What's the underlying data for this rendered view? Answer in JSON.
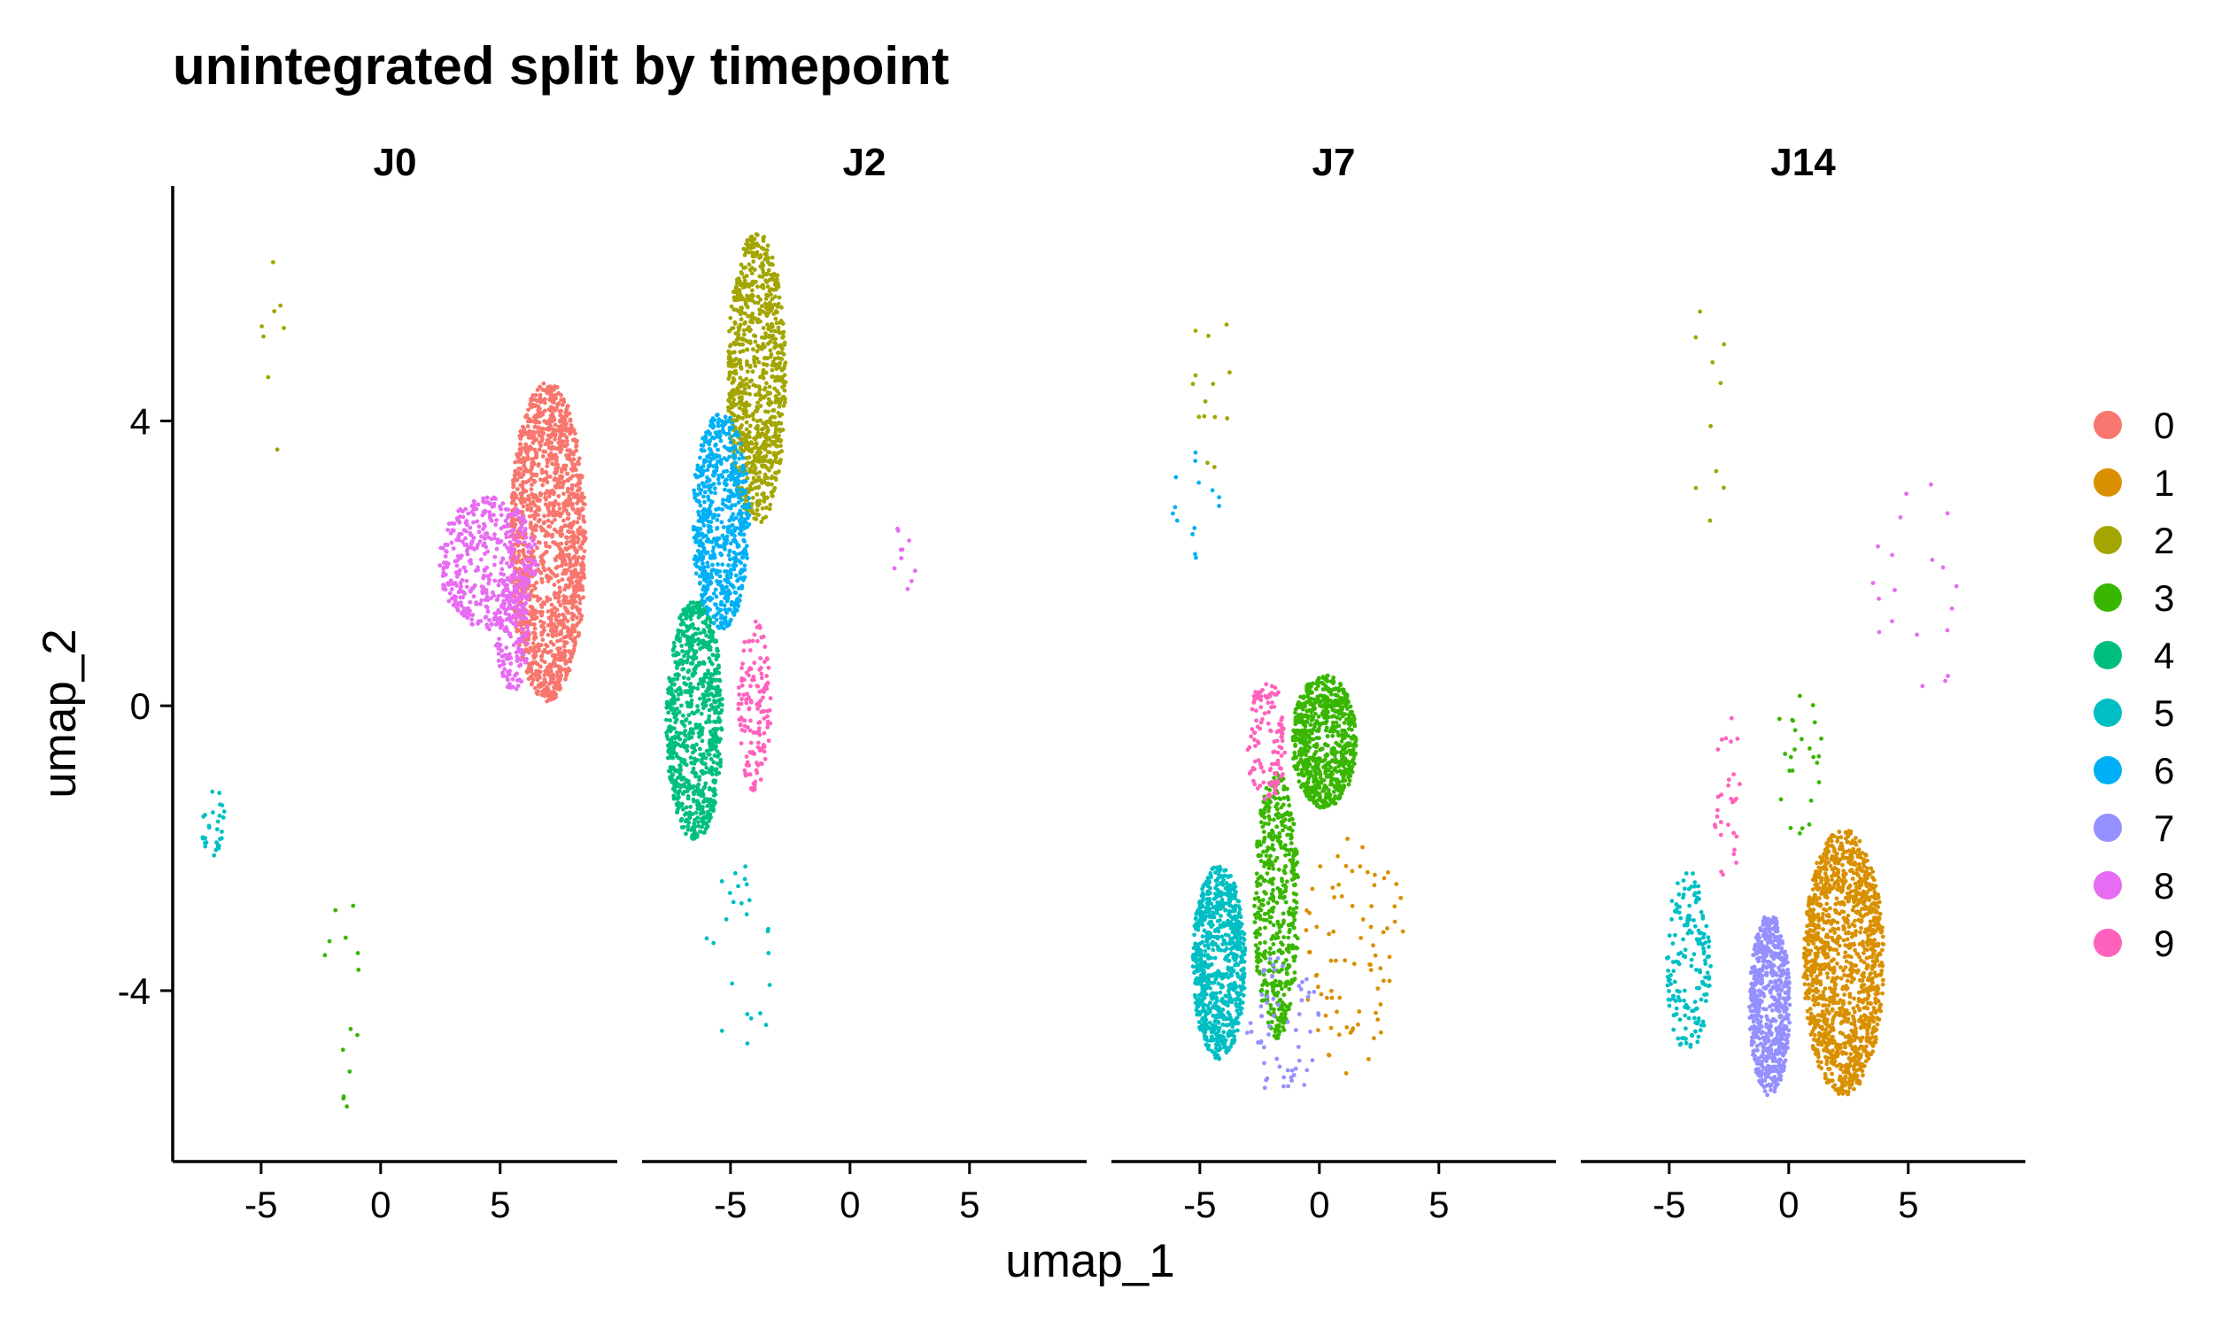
{
  "chart_data": {
    "type": "scatter",
    "title": "unintegrated split by timepoint",
    "xlabel": "umap_1",
    "ylabel": "umap_2",
    "xlim": [
      -8.7,
      9.9
    ],
    "ylim": [
      -6.4,
      7.3
    ],
    "x_ticks": [
      -5,
      0,
      5
    ],
    "y_ticks": [
      4,
      0,
      -4
    ],
    "grid": false,
    "legend_position": "right",
    "legend_title": "",
    "legend": [
      {
        "label": "0",
        "color": "#F8766D"
      },
      {
        "label": "1",
        "color": "#D89000"
      },
      {
        "label": "2",
        "color": "#A3A500"
      },
      {
        "label": "3",
        "color": "#39B600"
      },
      {
        "label": "4",
        "color": "#00BF7D"
      },
      {
        "label": "5",
        "color": "#00BFC4"
      },
      {
        "label": "6",
        "color": "#00B0F6"
      },
      {
        "label": "7",
        "color": "#9590FF"
      },
      {
        "label": "8",
        "color": "#E76BF3"
      },
      {
        "label": "9",
        "color": "#FF62BC"
      }
    ],
    "panels": [
      {
        "name": "J0",
        "clusters": [
          {
            "cluster": "0",
            "cx": 7.0,
            "cy": 2.3,
            "sx": 0.85,
            "sy": 1.2,
            "n": 1500,
            "spread": 1.1
          },
          {
            "cluster": "8",
            "cx": 4.5,
            "cy": 2.0,
            "sx": 1.2,
            "sy": 0.55,
            "n": 450
          },
          {
            "cluster": "8",
            "cx": 5.5,
            "cy": 1.0,
            "sx": 0.4,
            "sy": 0.5,
            "n": 150
          },
          {
            "cluster": "5",
            "cx": -7.0,
            "cy": -1.6,
            "sx": 0.3,
            "sy": 0.3,
            "n": 30
          },
          {
            "cluster": "3",
            "cx": -1.5,
            "cy": -4.0,
            "sx": 0.6,
            "sy": 1.0,
            "n": 14
          },
          {
            "cluster": "2",
            "cx": -4.5,
            "cy": 5.0,
            "sx": 0.3,
            "sy": 1.0,
            "n": 8
          }
        ]
      },
      {
        "name": "J2",
        "clusters": [
          {
            "cluster": "2",
            "cx": -3.9,
            "cy": 4.6,
            "sx": 0.65,
            "sy": 1.1,
            "n": 900,
            "spread": 1.1
          },
          {
            "cluster": "6",
            "cx": -5.4,
            "cy": 2.6,
            "sx": 0.7,
            "sy": 0.9,
            "n": 650
          },
          {
            "cluster": "4",
            "cx": -6.5,
            "cy": -0.2,
            "sx": 0.7,
            "sy": 1.0,
            "n": 800
          },
          {
            "cluster": "9",
            "cx": -4.0,
            "cy": 0.0,
            "sx": 0.4,
            "sy": 0.7,
            "n": 150
          },
          {
            "cluster": "5",
            "cx": -4.5,
            "cy": -3.5,
            "sx": 0.9,
            "sy": 0.8,
            "n": 25
          },
          {
            "cluster": "8",
            "cx": 2.3,
            "cy": 2.1,
            "sx": 0.3,
            "sy": 0.3,
            "n": 10
          }
        ]
      },
      {
        "name": "J7",
        "clusters": [
          {
            "cluster": "5",
            "cx": -4.2,
            "cy": -3.6,
            "sx": 0.65,
            "sy": 0.8,
            "n": 800
          },
          {
            "cluster": "3",
            "cx": 0.2,
            "cy": -0.5,
            "sx": 0.8,
            "sy": 0.55,
            "n": 700
          },
          {
            "cluster": "3",
            "cx": -1.8,
            "cy": -2.8,
            "sx": 0.55,
            "sy": 1.1,
            "n": 500
          },
          {
            "cluster": "9",
            "cx": -2.2,
            "cy": -0.5,
            "sx": 0.5,
            "sy": 0.5,
            "n": 120
          },
          {
            "cluster": "1",
            "cx": 1.5,
            "cy": -3.5,
            "sx": 1.3,
            "sy": 1.0,
            "n": 80
          },
          {
            "cluster": "7",
            "cx": -1.5,
            "cy": -4.5,
            "sx": 0.9,
            "sy": 0.6,
            "n": 60
          },
          {
            "cluster": "2",
            "cx": -4.5,
            "cy": 4.5,
            "sx": 0.6,
            "sy": 0.7,
            "n": 14
          },
          {
            "cluster": "6",
            "cx": -5.2,
            "cy": 2.9,
            "sx": 0.6,
            "sy": 0.6,
            "n": 14
          }
        ]
      },
      {
        "name": "J14",
        "clusters": [
          {
            "cluster": "1",
            "cx": 2.3,
            "cy": -3.6,
            "sx": 0.9,
            "sy": 1.0,
            "n": 1300,
            "spread": 1.1
          },
          {
            "cluster": "7",
            "cx": -0.8,
            "cy": -4.2,
            "sx": 0.5,
            "sy": 0.75,
            "n": 650
          },
          {
            "cluster": "5",
            "cx": -4.2,
            "cy": -3.6,
            "sx": 0.55,
            "sy": 0.75,
            "n": 180
          },
          {
            "cluster": "9",
            "cx": -2.6,
            "cy": -1.3,
            "sx": 0.4,
            "sy": 0.7,
            "n": 30
          },
          {
            "cluster": "3",
            "cx": 0.4,
            "cy": -0.8,
            "sx": 0.6,
            "sy": 0.6,
            "n": 25
          },
          {
            "cluster": "8",
            "cx": 5.7,
            "cy": 1.7,
            "sx": 1.3,
            "sy": 0.9,
            "n": 20
          },
          {
            "cluster": "2",
            "cx": -3.5,
            "cy": 4.2,
            "sx": 0.7,
            "sy": 1.0,
            "n": 10
          }
        ]
      }
    ]
  }
}
